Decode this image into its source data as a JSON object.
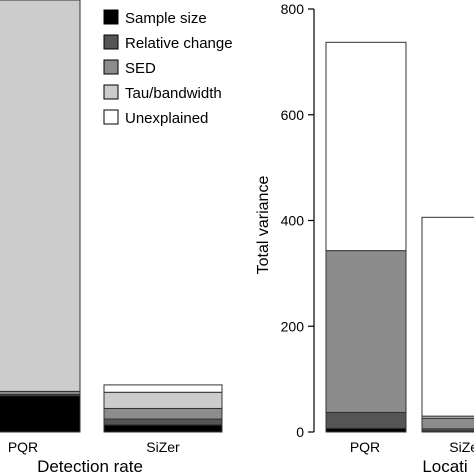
{
  "colors": {
    "sample_size": "#000000",
    "relative_change": "#555555",
    "sed": "#8c8c8c",
    "tau_bandwidth": "#cccccc",
    "unexplained": "#ffffff"
  },
  "chart_data": [
    {
      "type": "bar",
      "stacked": true,
      "xlabel": "Detection rate",
      "ylabel": "",
      "categories": [
        "PQR",
        "SiZer"
      ],
      "legend": {
        "placement": "top-right"
      },
      "series": [
        {
          "name": "Sample size",
          "color": "#000000",
          "values": [
            0.168,
            0.033
          ]
        },
        {
          "name": "Relative change",
          "color": "#555555",
          "values": [
            0.006,
            0.027
          ]
        },
        {
          "name": "SED",
          "color": "#8c8c8c",
          "values": [
            0.014,
            0.049
          ]
        },
        {
          "name": "Tau/bandwidth",
          "color": "#cccccc",
          "values": [
            1.812,
            0.075
          ]
        },
        {
          "name": "Unexplained",
          "color": "#ffffff",
          "values": [
            0.0,
            0.034
          ]
        }
      ],
      "ylim": [
        0,
        2.0
      ]
    },
    {
      "type": "bar",
      "stacked": true,
      "xlabel": "Locati",
      "ylabel": "Total variance",
      "categories": [
        "PQR",
        "SiZer"
      ],
      "yticks": [
        0,
        200,
        400,
        600,
        800
      ],
      "ylim": [
        0,
        800
      ],
      "series": [
        {
          "name": "Sample size",
          "color": "#000000",
          "values": [
            7,
            2
          ]
        },
        {
          "name": "Relative change",
          "color": "#555555",
          "values": [
            30,
            4
          ]
        },
        {
          "name": "SED",
          "color": "#8c8c8c",
          "values": [
            306,
            20
          ]
        },
        {
          "name": "Tau/bandwidth",
          "color": "#cccccc",
          "values": [
            0,
            4
          ]
        },
        {
          "name": "Unexplained",
          "color": "#ffffff",
          "values": [
            394,
            376
          ]
        }
      ]
    }
  ]
}
